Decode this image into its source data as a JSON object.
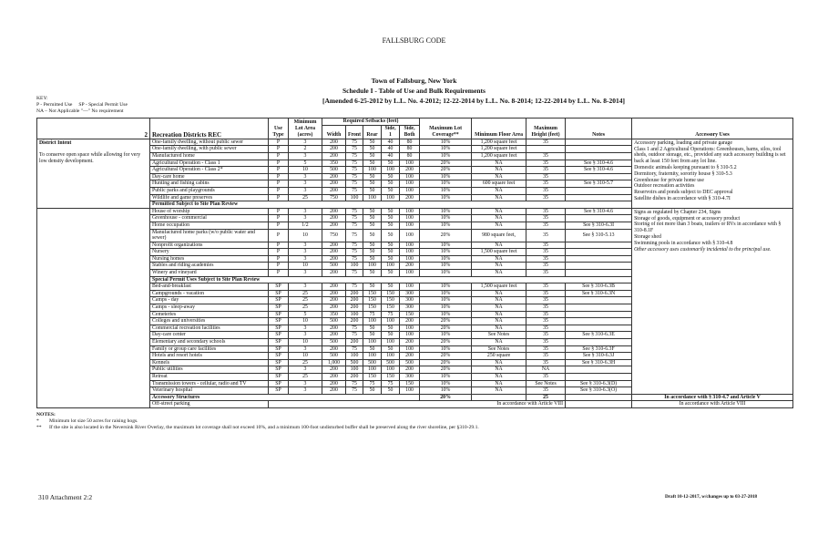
{
  "header": {
    "code": "FALLSBURG CODE",
    "title": "Town of Fallsburg, New York",
    "subtitle": "Schedule I - Table of Use and Bulk Requirements",
    "amended": "[Amended 6-25-2012 by L.L. No. 4-2012; 12-22-2014 by L.L. No. 8-2014; 12-22-2014 by L.L. No. 8-2014]"
  },
  "key": {
    "label": "KEY:",
    "line1": "P - Permitted Use     SP - Special Permit Use",
    "line2": "NA – Not Applicable  \"—\" No requirement"
  },
  "table": {
    "section_number": "2",
    "district": "Recreation Districts REC",
    "columns": {
      "use_type": "Use Type",
      "min_lot": "Minimum Lot Area (acres)",
      "setbacks": "Required Setbacks (feet)",
      "width": "Width",
      "front": "Front",
      "rear": "Rear",
      "side1": "Side, 1",
      "side_both": "Side, Both",
      "coverage": "Maximum Lot Coverage**",
      "floor_area": "Minimum Floor Area",
      "height": "Maximum Height (feet)",
      "notes": "Notes",
      "accessory": "Accessory Uses"
    },
    "district_intent_title": "District Intent",
    "district_intent_text": "To conserve open space while allowing for very low density development.",
    "groups": [
      {
        "heading": "",
        "rows": [
          [
            "One-family dwelling, without public sewer",
            "P",
            "3",
            "200",
            "75",
            "50",
            "40",
            "80",
            "10%",
            "1,200 square feet",
            "35",
            ""
          ],
          [
            "One-family dwelling, with public sewer",
            "P",
            "2",
            "200",
            "75",
            "50",
            "40",
            "80",
            "10%",
            "1,200 square feet",
            "",
            ""
          ],
          [
            "Manufactured home",
            "P",
            "3",
            "200",
            "75",
            "50",
            "40",
            "80",
            "10%",
            "1,200 square feet",
            "35",
            ""
          ],
          [
            "Agricultural Operation - Class 1",
            "P",
            "5",
            "350",
            "75",
            "50",
            "50",
            "100",
            "20%",
            "NA",
            "35",
            "See § 310-4.6"
          ],
          [
            "Agricultural Operation - Class 2*",
            "P",
            "10",
            "500",
            "75",
            "100",
            "100",
            "200",
            "20%",
            "NA",
            "35",
            "See § 310-4.6"
          ],
          [
            "Day-care home",
            "P",
            "3",
            "200",
            "75",
            "50",
            "50",
            "100",
            "10%",
            "NA",
            "35",
            ""
          ],
          [
            "Hunting and fishing cabins",
            "P",
            "3",
            "200",
            "75",
            "50",
            "50",
            "100",
            "10%",
            "600 square feet",
            "35",
            "See § 310-5.7"
          ],
          [
            "Public parks and playgrounds",
            "P",
            "3",
            "200",
            "75",
            "50",
            "50",
            "100",
            "10%",
            "NA",
            "35",
            ""
          ],
          [
            "Wildlife and game preserves",
            "P",
            "25",
            "750",
            "100",
            "100",
            "100",
            "200",
            "10%",
            "NA",
            "35",
            ""
          ]
        ]
      },
      {
        "heading": "Permitted Subject to Site Plan Review",
        "rows": [
          [
            "House of worship",
            "P",
            "3",
            "200",
            "75",
            "50",
            "50",
            "100",
            "10%",
            "NA",
            "35",
            "See § 310-4.6"
          ],
          [
            "Greenhouse - commercial",
            "P",
            "3",
            "200",
            "75",
            "50",
            "50",
            "100",
            "10%",
            "NA",
            "35",
            ""
          ],
          [
            "Home occupation",
            "P",
            "1/2",
            "200",
            "75",
            "50",
            "50",
            "100",
            "10%",
            "NA",
            "35",
            "See § 310-6.3I"
          ],
          [
            "Manufactured home parks (w/o public water and sewer)",
            "P",
            "10",
            "750",
            "75",
            "50",
            "50",
            "100",
            "20%",
            "980 square feet,",
            "35",
            "See § 310-5.13"
          ],
          [
            "Nonprofit organizations",
            "P",
            "3",
            "200",
            "75",
            "50",
            "50",
            "100",
            "10%",
            "NA",
            "35",
            ""
          ],
          [
            "Nursery",
            "P",
            "3",
            "200",
            "75",
            "50",
            "50",
            "100",
            "10%",
            "1,500 square feet",
            "35",
            ""
          ],
          [
            "Nursing homes",
            "P",
            "3",
            "200",
            "75",
            "50",
            "50",
            "100",
            "10%",
            "NA",
            "35",
            ""
          ],
          [
            "Stables and riding academies",
            "P",
            "10",
            "500",
            "100",
            "100",
            "100",
            "200",
            "10%",
            "NA",
            "35",
            ""
          ],
          [
            "Winery and vineyard",
            "P",
            "3",
            "200",
            "75",
            "50",
            "50",
            "100",
            "10%",
            "NA",
            "35",
            ""
          ]
        ]
      },
      {
        "heading": "Special Permit Uses Subject to Site Plan Review",
        "rows": [
          [
            "Bed-and-breakfast",
            "SP",
            "3",
            "200",
            "75",
            "50",
            "50",
            "100",
            "10%",
            "1,500 square feet",
            "35",
            "See § 310-6.3B"
          ],
          [
            "Campgrounds - vacation",
            "SP",
            "25",
            "200",
            "200",
            "150",
            "150",
            "300",
            "10%",
            "NA",
            "35",
            "See § 310-6.3N"
          ],
          [
            "Camps - day",
            "SP",
            "25",
            "200",
            "200",
            "150",
            "150",
            "300",
            "10%",
            "NA",
            "35",
            ""
          ],
          [
            "Camps - sleep-away",
            "SP",
            "25",
            "200",
            "200",
            "150",
            "150",
            "300",
            "10%",
            "NA",
            "35",
            ""
          ],
          [
            "Cemeteries",
            "SP",
            "5",
            "350",
            "100",
            "75",
            "75",
            "150",
            "10%",
            "NA",
            "35",
            ""
          ],
          [
            "Colleges and universities",
            "SP",
            "10",
            "500",
            "200",
            "100",
            "100",
            "200",
            "20%",
            "NA",
            "35",
            ""
          ],
          [
            "Commercial recreation facilities",
            "SP",
            "3",
            "200",
            "75",
            "50",
            "50",
            "100",
            "20%",
            "NA",
            "35",
            ""
          ],
          [
            "Day-care center",
            "SP",
            "3",
            "200",
            "75",
            "50",
            "50",
            "100",
            "10%",
            "See Notes",
            "35",
            "See § 310-6.3E"
          ],
          [
            "Elementary and secondary schools",
            "SP",
            "10",
            "500",
            "200",
            "100",
            "100",
            "200",
            "20%",
            "NA",
            "35",
            ""
          ],
          [
            "Family or group care facilities",
            "SP",
            "3",
            "200",
            "75",
            "50",
            "50",
            "100",
            "10%",
            "See Notes",
            "35",
            "See § 310-6.3F"
          ],
          [
            "Hotels and resort hotels",
            "SP",
            "10",
            "500",
            "100",
            "100",
            "100",
            "200",
            "20%",
            "250 square",
            "35",
            "See § 310-6.3J"
          ],
          [
            "Kennels",
            "SP",
            "25",
            "1,000",
            "500",
            "500",
            "500",
            "500",
            "20%",
            "NA",
            "35",
            "See § 310-6.3H"
          ],
          [
            "Public utilities",
            "SP",
            "3",
            "200",
            "100",
            "100",
            "100",
            "200",
            "20%",
            "NA",
            "NA",
            ""
          ],
          [
            "Retreat",
            "SP",
            "25",
            "200",
            "200",
            "150",
            "150",
            "300",
            "10%",
            "NA",
            "35",
            ""
          ],
          [
            "Transmission towers - cellular, radio and TV",
            "SP",
            "3",
            "200",
            "75",
            "75",
            "75",
            "150",
            "10%",
            "NA",
            "See Notes",
            "See § 310-6.3(D)"
          ],
          [
            "Veterinary hospital",
            "SP",
            "3",
            "200",
            "75",
            "50",
            "50",
            "100",
            "10%",
            "NA",
            "35",
            "See § 310-6.3(O)"
          ]
        ]
      }
    ],
    "accessory_group1": [
      "Accessory parking, loading and private garage",
      "Class 1 and 2 Agricultural Operations: Greenhouses, barns, silos, tool sheds, outdoor storage, etc., provided any such accessory building is set back at least 150 feet from any lot line.",
      "Domestic animals keeping pursuant to § 310-5.2",
      "Dormitory, fraternity, sorority house § 310-5.3",
      "Greenhouse for private home use",
      "Outdoor recreation activities",
      "Reservoirs and ponds subject to DEC approval",
      "Satellite dishes in accordance with § 310-4.7I"
    ],
    "accessory_group2": [
      "Signs as regulated by Chapter 234, Signs",
      "Storage of goods, equipment or accessory product",
      "Storing of not more than 3 boats, trailers or RVs in accordance with § 310-8.1F",
      "Storage shed",
      "Swimming pools in accordance with § 310-4.8"
    ],
    "accessory_group2_italic": "Other accessory uses customarily incidental to the principal use.",
    "accessory_structures": {
      "label": "Accessory Structures",
      "coverage": "20%",
      "height": "25",
      "accessory": "In accordance with § 310-4.7 and Article V"
    },
    "off_street": {
      "label": "Off-street parking",
      "value": "In accordance with Article VIII",
      "accessory": "In accordance with Article VIII"
    }
  },
  "notes": {
    "title": "NOTES:",
    "n1_mark": "*",
    "n1": "Minimum lot size 50 acres for raising hogs.",
    "n2_mark": "**",
    "n2": "If the site is also located in the Neversink River Overlay, the maximum lot coverage shall not exceed 10%, and a minimum 100-foot undisturbed buffer shall be preserved along the river shoreline, per §310-29.1."
  },
  "footer": {
    "left": "310 Attachment 2:2",
    "right": "Draft 10-12-2017, w/changes up to 03-27-2018"
  }
}
